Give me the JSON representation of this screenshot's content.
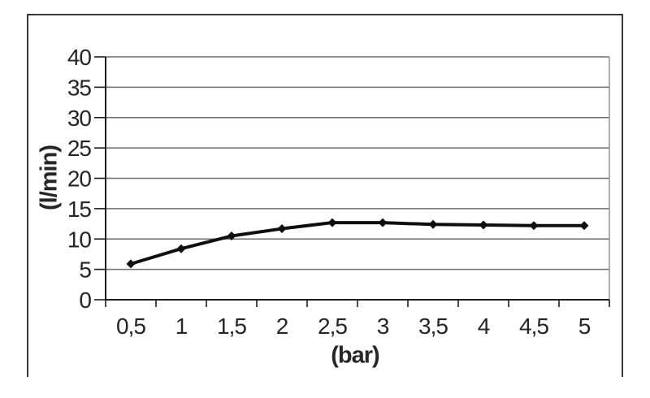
{
  "colors": {
    "background": "#ffffff",
    "frame_border": "#3a3a3a",
    "gridline": "#6e6e6e",
    "plot_border": "#9a9a9a",
    "axis": "#1c1c1c",
    "series": "#0e0e0e",
    "text": "#262626"
  },
  "chart_data": {
    "type": "line",
    "title": "",
    "xlabel": "(bar)",
    "ylabel": "(l/min)",
    "categories": [
      "0,5",
      "1",
      "1,5",
      "2",
      "2,5",
      "3",
      "3,5",
      "4",
      "4,5",
      "5"
    ],
    "values": [
      5.9,
      8.4,
      10.5,
      11.7,
      12.7,
      12.7,
      12.4,
      12.3,
      12.2,
      12.2
    ],
    "yticks": [
      0,
      5,
      10,
      15,
      20,
      25,
      30,
      35,
      40
    ],
    "ylim": [
      0,
      40
    ],
    "xlim_categories": 10,
    "grid": true,
    "legend": false,
    "marker": "diamond",
    "line_width": 4,
    "marker_size": 5.5
  }
}
